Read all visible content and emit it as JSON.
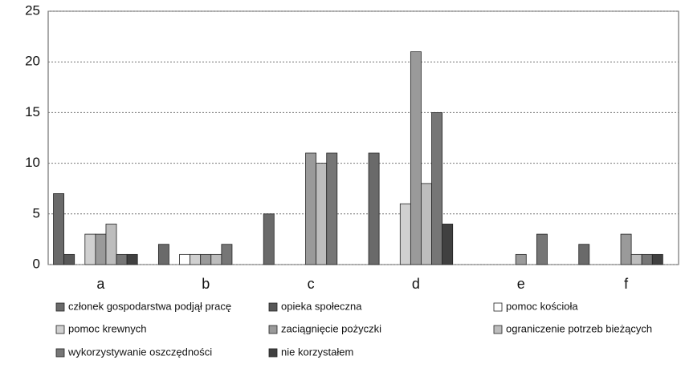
{
  "chart_data": {
    "type": "bar",
    "categories": [
      "a",
      "b",
      "c",
      "d",
      "e",
      "f"
    ],
    "series": [
      {
        "name": "członek gospodarstwa podjął pracę",
        "color": "#6a6a6a",
        "values": [
          7,
          2,
          5,
          11,
          0,
          2
        ]
      },
      {
        "name": "opieka społeczna",
        "color": "#585858",
        "values": [
          1,
          0,
          0,
          0,
          0,
          0
        ]
      },
      {
        "name": "pomoc kościoła",
        "color": "#ffffff",
        "values": [
          0,
          1,
          0,
          0,
          0,
          0
        ]
      },
      {
        "name": "pomoc krewnych",
        "color": "#d0d0d0",
        "values": [
          3,
          1,
          0,
          6,
          0,
          0
        ]
      },
      {
        "name": "zaciągnięcie pożyczki",
        "color": "#9a9a9a",
        "values": [
          3,
          1,
          11,
          21,
          1,
          3
        ]
      },
      {
        "name": "ograniczenie potrzeb bieżących",
        "color": "#bdbdbd",
        "values": [
          4,
          1,
          10,
          8,
          0,
          1
        ]
      },
      {
        "name": "wykorzystywanie oszczędności",
        "color": "#767676",
        "values": [
          1,
          2,
          11,
          15,
          3,
          1
        ]
      },
      {
        "name": "nie korzystałem",
        "color": "#404040",
        "values": [
          1,
          0,
          0,
          4,
          0,
          1
        ]
      }
    ],
    "ylim": [
      0,
      25
    ],
    "yticks": [
      0,
      5,
      10,
      15,
      20,
      25
    ],
    "grid": true
  }
}
